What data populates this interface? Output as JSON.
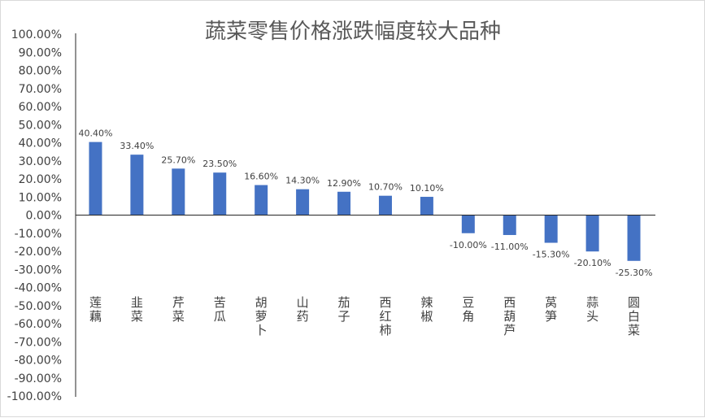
{
  "chart_data": {
    "type": "bar",
    "title": "蔬菜零售价格涨跌幅度较大品种",
    "categories": [
      "莲藕",
      "韭菜",
      "芹菜",
      "苦瓜",
      "胡萝卜",
      "山药",
      "茄子",
      "西红柿",
      "辣椒",
      "豆角",
      "西葫芦",
      "莴笋",
      "蒜头",
      "圆白菜"
    ],
    "values": [
      40.4,
      33.4,
      25.7,
      23.5,
      16.6,
      14.3,
      12.9,
      10.7,
      10.1,
      -10.0,
      -11.0,
      -15.3,
      -20.1,
      -25.3
    ],
    "data_labels": [
      "40.40%",
      "33.40%",
      "25.70%",
      "23.50%",
      "16.60%",
      "14.30%",
      "12.90%",
      "10.70%",
      "10.10%",
      "-10.00%",
      "-11.00%",
      "-15.30%",
      "-20.10%",
      "-25.30%"
    ],
    "ylim": [
      -100,
      100
    ],
    "ytick_labels": [
      "100.00%",
      "90.00%",
      "80.00%",
      "70.00%",
      "60.00%",
      "50.00%",
      "40.00%",
      "30.00%",
      "20.00%",
      "10.00%",
      "0.00%",
      "-10.00%",
      "-20.00%",
      "-30.00%",
      "-40.00%",
      "-50.00%",
      "-60.00%",
      "-70.00%",
      "-80.00%",
      "-90.00%",
      "-100.00%"
    ],
    "xlabel": "",
    "ylabel": "",
    "grid": false,
    "legend": "none",
    "bar_color": "#4472C4"
  }
}
